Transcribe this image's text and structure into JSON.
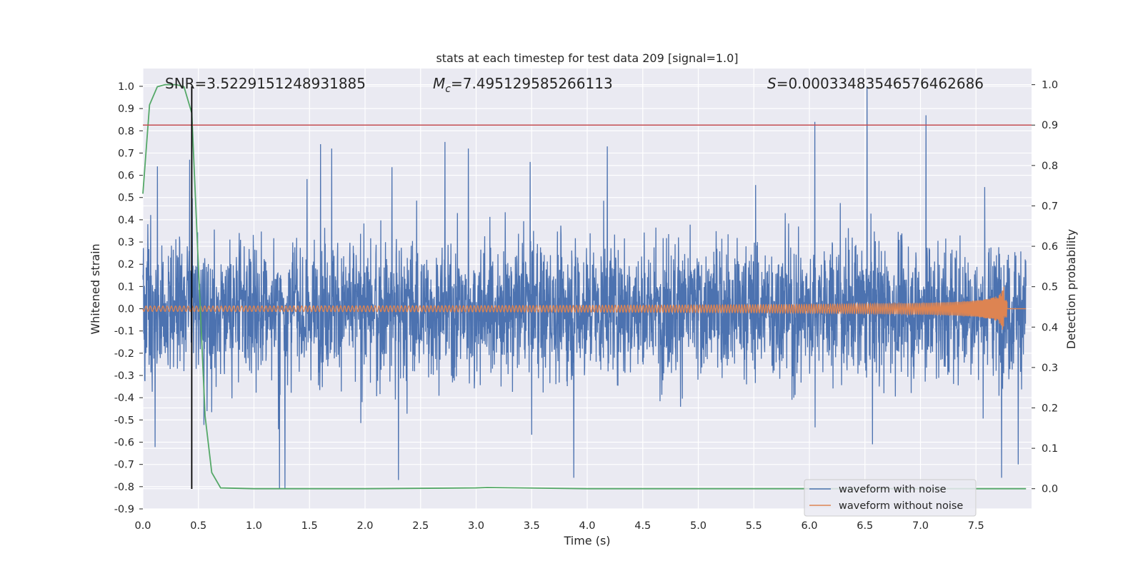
{
  "chart_data": {
    "type": "line",
    "title": "stats at each timestep for test data 209 [signal=1.0]",
    "xlabel": "Time (s)",
    "ylabel_left": "Whitened strain",
    "ylabel_right": "Detection probability",
    "xlim": [
      0.0,
      8.0
    ],
    "ylim_left": [
      -0.9,
      1.08
    ],
    "ylim_right": [
      -0.05,
      1.04
    ],
    "x_ticks": [
      "0.0",
      "0.5",
      "1.0",
      "1.5",
      "2.0",
      "2.5",
      "3.0",
      "3.5",
      "4.0",
      "4.5",
      "5.0",
      "5.5",
      "6.0",
      "6.5",
      "7.0",
      "7.5"
    ],
    "y_left_ticks": [
      "1.0",
      "0.9",
      "0.8",
      "0.7",
      "0.6",
      "0.5",
      "0.4",
      "0.3",
      "0.2",
      "0.1",
      "0.0",
      "-0.1",
      "-0.2",
      "-0.3",
      "-0.4",
      "-0.5",
      "-0.6",
      "-0.7",
      "-0.8",
      "-0.9"
    ],
    "y_right_ticks": [
      "1.0",
      "0.9",
      "0.8",
      "0.7",
      "0.6",
      "0.5",
      "0.4",
      "0.3",
      "0.2",
      "0.1",
      "0.0"
    ],
    "annotations": {
      "snr": "SNR=3.5229151248931885",
      "mc_symbol": "M",
      "mc_sub": "c",
      "mc_value": "=7.495129585266113",
      "s_symbol": "S",
      "s_value": "=0.00033483546576462686"
    },
    "threshold_probability": 0.9,
    "marker_time": 0.44,
    "legend_position": "lower right",
    "grid": true,
    "colors": {
      "noisy": "#4c72b0",
      "clean": "#dd8452",
      "probability": "#55a868",
      "threshold": "#c44e52",
      "marker": "#000000",
      "background": "#eaeaf2"
    },
    "series": [
      {
        "name": "waveform with noise",
        "axis": "left",
        "noise_amplitude": 0.5,
        "spikes": [
          {
            "x": 0.13,
            "y": 0.64
          },
          {
            "x": 0.42,
            "y": 0.67
          },
          {
            "x": 1.23,
            "y": -0.81
          },
          {
            "x": 1.28,
            "y": -0.81
          },
          {
            "x": 1.6,
            "y": 0.74
          },
          {
            "x": 1.7,
            "y": 0.72
          },
          {
            "x": 2.3,
            "y": -0.77
          },
          {
            "x": 2.72,
            "y": 0.75
          },
          {
            "x": 2.93,
            "y": 0.72
          },
          {
            "x": 3.88,
            "y": -0.76
          },
          {
            "x": 4.18,
            "y": 0.73
          },
          {
            "x": 6.05,
            "y": 0.84
          },
          {
            "x": 6.52,
            "y": 1.0
          },
          {
            "x": 7.05,
            "y": 0.87
          },
          {
            "x": 7.73,
            "y": -0.76
          },
          {
            "x": 7.88,
            "y": -0.7
          }
        ]
      },
      {
        "name": "waveform without noise",
        "axis": "left",
        "chirp": {
          "start_amp": 0.012,
          "peak_time": 7.75,
          "peak_amp": 0.1,
          "end_time": 7.78
        }
      },
      {
        "name": "detection probability",
        "axis": "right",
        "x": [
          0.0,
          0.06,
          0.13,
          0.2,
          0.3,
          0.37,
          0.44,
          0.5,
          0.56,
          0.62,
          0.7,
          1.0,
          2.0,
          3.0,
          3.1,
          4.0,
          5.0,
          6.0,
          7.0,
          7.95
        ],
        "y": [
          0.73,
          0.95,
          0.995,
          1.0,
          1.0,
          0.995,
          0.93,
          0.55,
          0.18,
          0.04,
          0.002,
          0.0,
          0.0,
          0.002,
          0.003,
          0.0,
          0.0,
          0.0,
          0.0,
          0.0
        ]
      }
    ]
  }
}
